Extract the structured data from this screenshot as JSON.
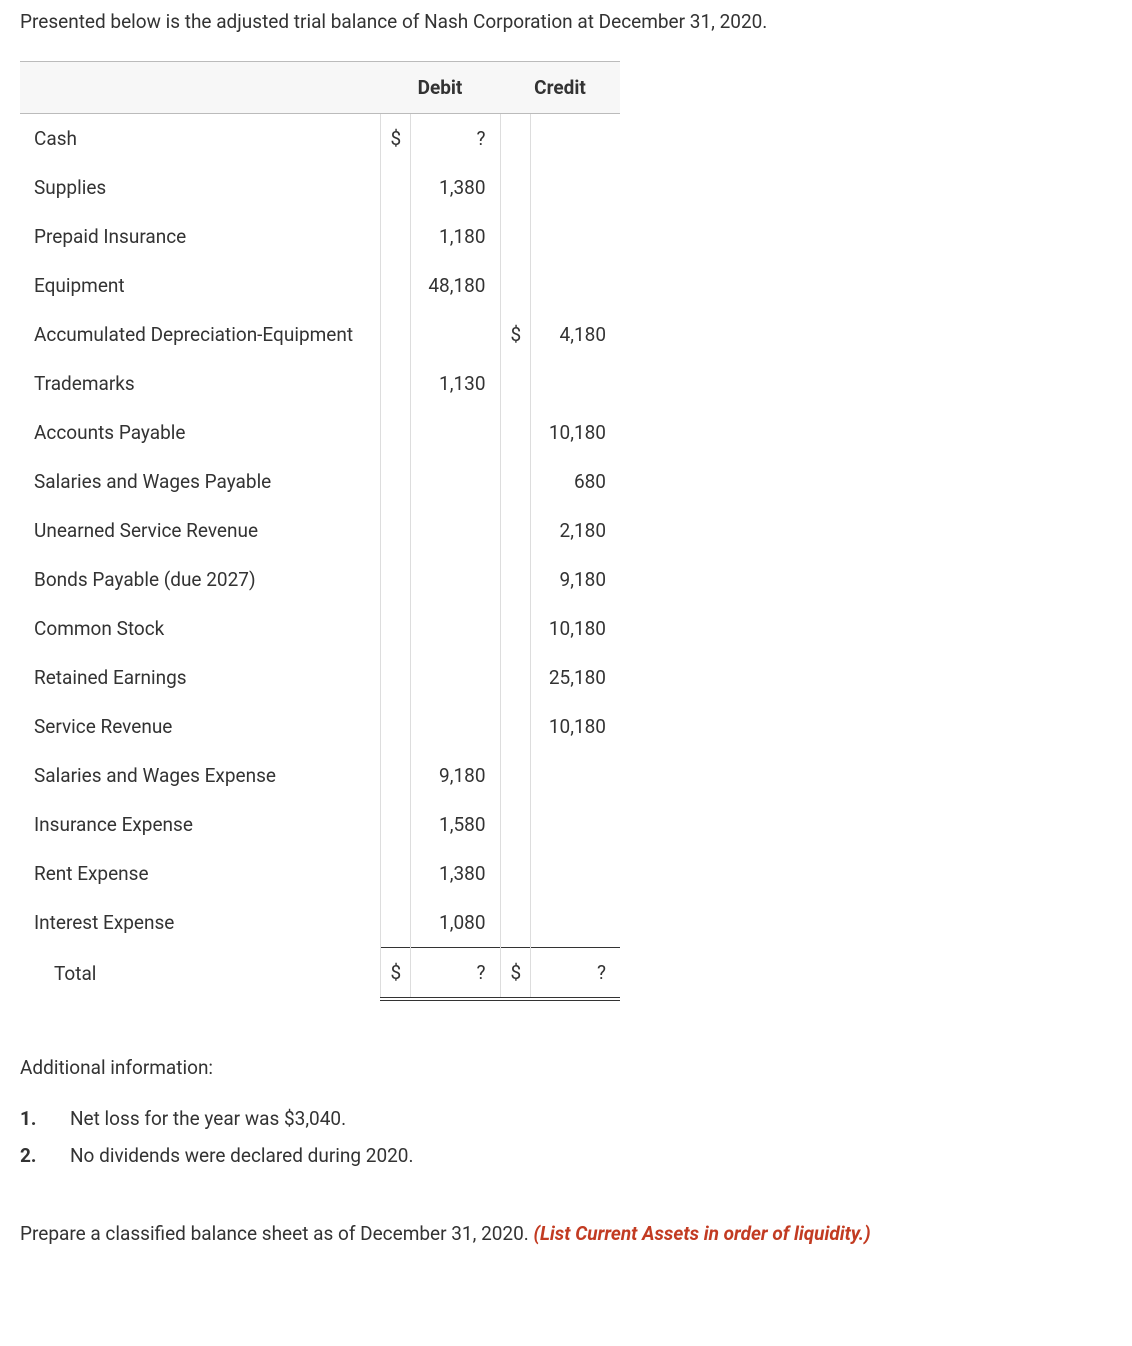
{
  "intro": "Presented below is the adjusted trial balance of Nash Corporation at December 31, 2020.",
  "headers": {
    "debit": "Debit",
    "credit": "Credit"
  },
  "rows": [
    {
      "account": "Cash",
      "debit_sym": "$",
      "debit": "?",
      "credit_sym": "",
      "credit": ""
    },
    {
      "account": "Supplies",
      "debit_sym": "",
      "debit": "1,380",
      "credit_sym": "",
      "credit": ""
    },
    {
      "account": "Prepaid Insurance",
      "debit_sym": "",
      "debit": "1,180",
      "credit_sym": "",
      "credit": ""
    },
    {
      "account": "Equipment",
      "debit_sym": "",
      "debit": "48,180",
      "credit_sym": "",
      "credit": ""
    },
    {
      "account": "Accumulated Depreciation-Equipment",
      "debit_sym": "",
      "debit": "",
      "credit_sym": "$",
      "credit": "4,180"
    },
    {
      "account": "Trademarks",
      "debit_sym": "",
      "debit": "1,130",
      "credit_sym": "",
      "credit": ""
    },
    {
      "account": "Accounts Payable",
      "debit_sym": "",
      "debit": "",
      "credit_sym": "",
      "credit": "10,180"
    },
    {
      "account": "Salaries and Wages Payable",
      "debit_sym": "",
      "debit": "",
      "credit_sym": "",
      "credit": "680"
    },
    {
      "account": "Unearned Service Revenue",
      "debit_sym": "",
      "debit": "",
      "credit_sym": "",
      "credit": "2,180"
    },
    {
      "account": "Bonds Payable (due 2027)",
      "debit_sym": "",
      "debit": "",
      "credit_sym": "",
      "credit": "9,180"
    },
    {
      "account": "Common Stock",
      "debit_sym": "",
      "debit": "",
      "credit_sym": "",
      "credit": "10,180"
    },
    {
      "account": "Retained Earnings",
      "debit_sym": "",
      "debit": "",
      "credit_sym": "",
      "credit": "25,180"
    },
    {
      "account": "Service Revenue",
      "debit_sym": "",
      "debit": "",
      "credit_sym": "",
      "credit": "10,180"
    },
    {
      "account": "Salaries and Wages Expense",
      "debit_sym": "",
      "debit": "9,180",
      "credit_sym": "",
      "credit": ""
    },
    {
      "account": "Insurance Expense",
      "debit_sym": "",
      "debit": "1,580",
      "credit_sym": "",
      "credit": ""
    },
    {
      "account": "Rent Expense",
      "debit_sym": "",
      "debit": "1,380",
      "credit_sym": "",
      "credit": ""
    },
    {
      "account": "Interest Expense",
      "debit_sym": "",
      "debit": "1,080",
      "credit_sym": "",
      "credit": ""
    }
  ],
  "total": {
    "label": "Total",
    "debit_sym": "$",
    "debit": "?",
    "credit_sym": "$",
    "credit": "?"
  },
  "additional": {
    "heading": "Additional information:",
    "items": [
      {
        "marker": "1.",
        "text": "Net loss for the year was $3,040."
      },
      {
        "marker": "2.",
        "text": "No dividends were declared during 2020."
      }
    ]
  },
  "instruction": {
    "text": "Prepare a classified balance sheet as of December 31, 2020. ",
    "hint": "(List Current Assets in order of liquidity.)"
  }
}
